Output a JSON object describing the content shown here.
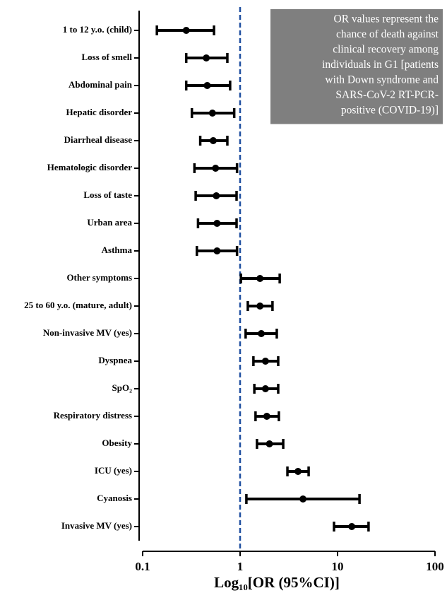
{
  "chart_data": {
    "type": "forest",
    "categories": [
      "1 to 12 y.o. (child)",
      "Loss of smell",
      "Abdominal pain",
      "Hepatic disorder",
      "Diarrheal disease",
      "Hematologic disorder",
      "Loss of taste",
      "Urban area",
      "Asthma",
      "Other symptoms",
      "25 to 60 y.o. (mature, adult)",
      "Non-invasive MV (yes)",
      "Dyspnea",
      "SpO₂",
      "Respiratory distress",
      "Obesity",
      "ICU (yes)",
      "Cyanosis",
      "Invasive MV (yes)"
    ],
    "values": [
      0.28,
      0.45,
      0.46,
      0.52,
      0.53,
      0.56,
      0.57,
      0.58,
      0.58,
      1.6,
      1.6,
      1.65,
      1.82,
      1.82,
      1.88,
      2.0,
      3.93,
      4.42,
      14
    ],
    "lower": [
      0.14,
      0.28,
      0.28,
      0.32,
      0.39,
      0.34,
      0.35,
      0.37,
      0.36,
      1.02,
      1.2,
      1.14,
      1.37,
      1.4,
      1.44,
      1.49,
      3.06,
      1.16,
      9.2
    ],
    "upper": [
      0.54,
      0.74,
      0.79,
      0.87,
      0.74,
      0.93,
      0.92,
      0.92,
      0.93,
      2.55,
      2.15,
      2.38,
      2.46,
      2.46,
      2.5,
      2.77,
      5.05,
      16.8,
      20.8
    ],
    "color": "#000000",
    "xscale": "log",
    "xlim": [
      0.1,
      100
    ],
    "xticks": [
      0.1,
      1,
      10,
      100
    ],
    "x_label": "Log₁₀[OR (95%CI)]",
    "reference_line": {
      "value": 1,
      "color": "#1f4fa0"
    },
    "annotation": {
      "lines": [
        "OR values represent the",
        "chance of death against",
        "clinical recovery among",
        "individuals in G1 [patients",
        "with Down syndrome and",
        "SARS-CoV-2 RT-PCR-",
        "positive (COVID-19)]"
      ],
      "background": "#7f7f7f",
      "text_color": "#ffffff"
    }
  }
}
